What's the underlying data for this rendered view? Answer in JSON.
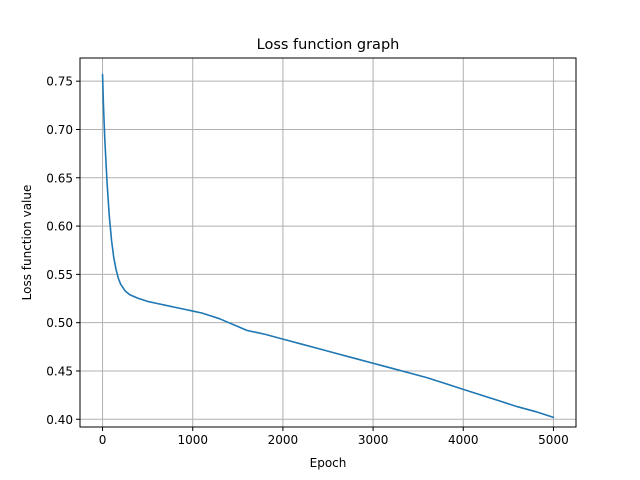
{
  "chart_data": {
    "type": "line",
    "title": "Loss function graph",
    "xlabel": "Epoch",
    "ylabel": "Loss function value",
    "xlim": [
      -250,
      5250
    ],
    "ylim": [
      0.392,
      0.774
    ],
    "xticks": [
      0,
      1000,
      2000,
      3000,
      4000,
      5000
    ],
    "xtick_labels": [
      "0",
      "1000",
      "2000",
      "3000",
      "4000",
      "5000"
    ],
    "yticks": [
      0.4,
      0.45,
      0.5,
      0.55,
      0.6,
      0.65,
      0.7,
      0.75
    ],
    "ytick_labels": [
      "0.40",
      "0.45",
      "0.50",
      "0.55",
      "0.60",
      "0.65",
      "0.70",
      "0.75"
    ],
    "grid": true,
    "series_color": "#1f77b4",
    "grid_color": "#b0b0b0",
    "series": [
      {
        "x": [
          0,
          10,
          25,
          50,
          75,
          100,
          125,
          150,
          175,
          200,
          250,
          300,
          350,
          400,
          500,
          600,
          700,
          800,
          900,
          1000,
          1100,
          1200,
          1300,
          1400,
          1500,
          1600,
          1700,
          1800,
          2000,
          2200,
          2400,
          2600,
          2800,
          3000,
          3200,
          3400,
          3600,
          3800,
          4000,
          4200,
          4400,
          4600,
          4800,
          5000
        ],
        "y": [
          0.757,
          0.725,
          0.69,
          0.645,
          0.61,
          0.585,
          0.567,
          0.555,
          0.546,
          0.54,
          0.533,
          0.529,
          0.527,
          0.525,
          0.522,
          0.52,
          0.518,
          0.516,
          0.514,
          0.512,
          0.51,
          0.507,
          0.504,
          0.5,
          0.496,
          0.492,
          0.49,
          0.488,
          0.483,
          0.478,
          0.473,
          0.468,
          0.463,
          0.458,
          0.453,
          0.448,
          0.443,
          0.437,
          0.431,
          0.425,
          0.419,
          0.413,
          0.408,
          0.402
        ]
      }
    ]
  }
}
